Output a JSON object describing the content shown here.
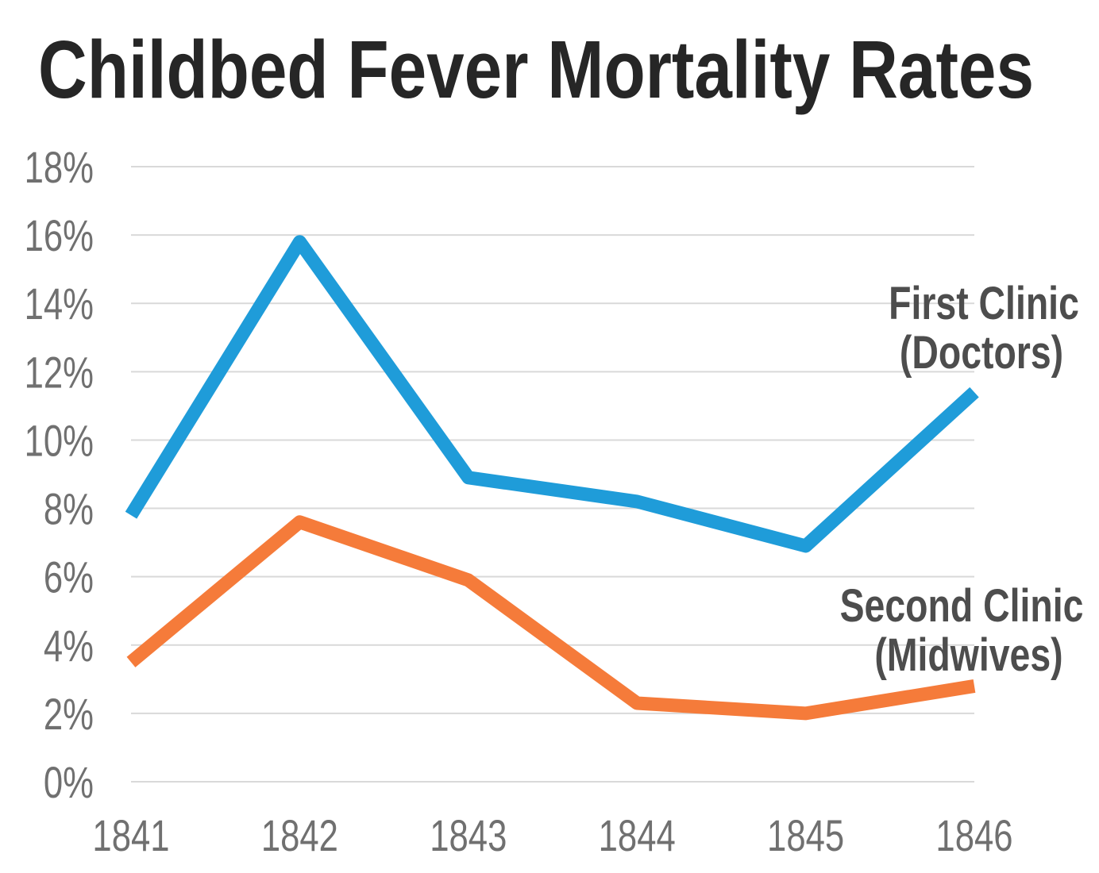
{
  "title": "Childbed Fever Mortality Rates",
  "chart_data": {
    "type": "line",
    "title": "Childbed Fever Mortality Rates",
    "xlabel": "",
    "ylabel": "",
    "categories": [
      "1841",
      "1842",
      "1843",
      "1844",
      "1845",
      "1846"
    ],
    "series": [
      {
        "name": "First Clinic (Doctors)",
        "label_lines": [
          "First Clinic",
          "(Doctors)"
        ],
        "color": "#1F9CD9",
        "values": [
          7.8,
          15.8,
          8.9,
          8.2,
          6.9,
          11.4
        ]
      },
      {
        "name": "Second Clinic (Midwives)",
        "label_lines": [
          "Second Clinic",
          "(Midwives)"
        ],
        "color": "#F57B3A",
        "values": [
          3.5,
          7.6,
          5.9,
          2.3,
          2.0,
          2.8
        ]
      }
    ],
    "ylim": [
      0,
      18
    ],
    "y_tick_step": 2,
    "y_tick_labels": [
      "0%",
      "2%",
      "4%",
      "6%",
      "8%",
      "10%",
      "12%",
      "14%",
      "16%",
      "18%"
    ],
    "grid": "horizontal-only",
    "legend_position": "inline-right-of-plot"
  },
  "colors": {
    "background": "#FFFFFF",
    "title_text": "#262626",
    "axis_tick_text": "#707070",
    "gridline": "#D9D9D9",
    "series_label_text": "#4D4D4D",
    "first_clinic_line": "#1F9CD9",
    "second_clinic_line": "#F57B3A"
  }
}
